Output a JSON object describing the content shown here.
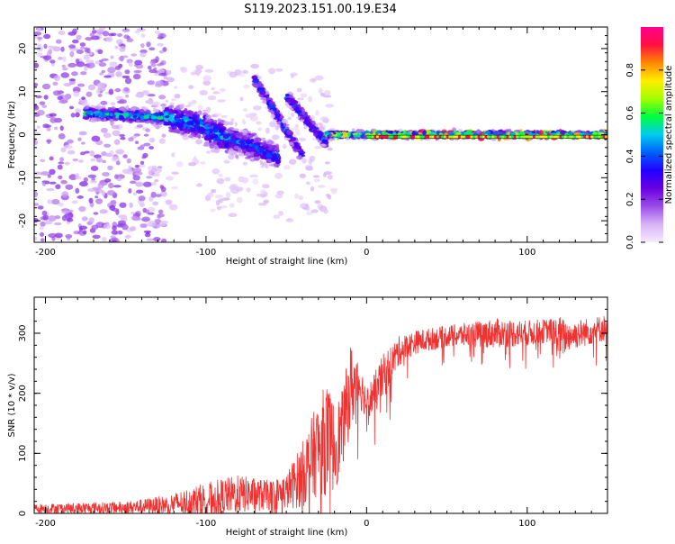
{
  "title": "S119.2023.151.00.19.E34",
  "chart_data": [
    {
      "type": "heatmap",
      "name": "spectrogram",
      "xlabel": "Height of straight line (km)",
      "ylabel": "Frequency (Hz)",
      "xlim": [
        -207,
        150
      ],
      "ylim": [
        -25,
        25
      ],
      "x_ticks": [
        -200,
        -100,
        0,
        100
      ],
      "y_ticks": [
        -20,
        -10,
        0,
        10,
        20
      ],
      "colorbar": {
        "label": "Normalized spectral amplitude",
        "range": [
          0,
          1
        ],
        "ticks": [
          0.0,
          0.2,
          0.4,
          0.6,
          0.8
        ],
        "tick_labels": [
          "0.0",
          "0.2",
          "0.4",
          "0.6",
          "0.8"
        ],
        "colors": [
          "#f5eafd",
          "#d8b4f7",
          "#9b4de8",
          "#6a00e0",
          "#2200ff",
          "#0060ff",
          "#00ccee",
          "#00ff40",
          "#a0ff00",
          "#ffee00",
          "#ff8800",
          "#ff1040",
          "#ff0090"
        ]
      },
      "center_line": {
        "x_from": 0,
        "x_to": 150,
        "y": -0.5,
        "colors": [
          "#00ff40",
          "#a0ff00",
          "#ffee00",
          "#ff1040"
        ]
      },
      "ridges": [
        {
          "x0": -175,
          "x1": -125,
          "y0": 5,
          "y1": 4,
          "spread": 1.6,
          "amp": 0.38
        },
        {
          "x0": -125,
          "x1": -100,
          "y0": 4,
          "y1": 2,
          "spread": 3.5,
          "amp": 0.34
        },
        {
          "x0": -100,
          "x1": -70,
          "y0": 1,
          "y1": -3,
          "spread": 4,
          "amp": 0.32
        },
        {
          "x0": -85,
          "x1": -55,
          "y0": -1,
          "y1": -5,
          "spread": 3,
          "amp": 0.28
        },
        {
          "x0": -70,
          "x1": -40,
          "y0": 13,
          "y1": -5,
          "spread": 1.6,
          "amp": 0.26
        },
        {
          "x0": -50,
          "x1": -25,
          "y0": 9,
          "y1": -2,
          "spread": 1.6,
          "amp": 0.28
        },
        {
          "x0": -25,
          "x1": 150,
          "y0": 0,
          "y1": 0,
          "spread": 0.9,
          "amp": 0.45
        }
      ],
      "scatter_regions": [
        {
          "x0": -207,
          "x1": -125,
          "y0": -25,
          "y1": 25,
          "count": 520,
          "amp": 0.14
        },
        {
          "x0": -125,
          "x1": -20,
          "y0": -20,
          "y1": 16,
          "count": 220,
          "amp": 0.06
        }
      ]
    },
    {
      "type": "line",
      "name": "snr",
      "xlabel": "Height of straight line (km)",
      "ylabel": "SNR (10 * v/v)",
      "xlim": [
        -207,
        150
      ],
      "ylim": [
        0,
        360
      ],
      "x_ticks": [
        -200,
        -100,
        0,
        100
      ],
      "y_ticks": [
        0,
        100,
        200,
        300
      ],
      "color": "#ee3333",
      "envelope": {
        "x": [
          -207,
          -150,
          -125,
          -100,
          -80,
          -60,
          -50,
          -40,
          -30,
          -25,
          -20,
          -15,
          -10,
          -5,
          0,
          5,
          10,
          20,
          30,
          50,
          80,
          100,
          115,
          120,
          125,
          150
        ],
        "mean": [
          8,
          10,
          14,
          24,
          32,
          30,
          36,
          65,
          110,
          125,
          110,
          140,
          210,
          220,
          185,
          200,
          225,
          270,
          285,
          295,
          300,
          300,
          305,
          290,
          295,
          310
        ],
        "amp": [
          8,
          10,
          16,
          28,
          32,
          25,
          30,
          55,
          80,
          95,
          75,
          65,
          75,
          45,
          25,
          35,
          40,
          25,
          20,
          18,
          25,
          22,
          20,
          40,
          25,
          22
        ]
      }
    }
  ]
}
